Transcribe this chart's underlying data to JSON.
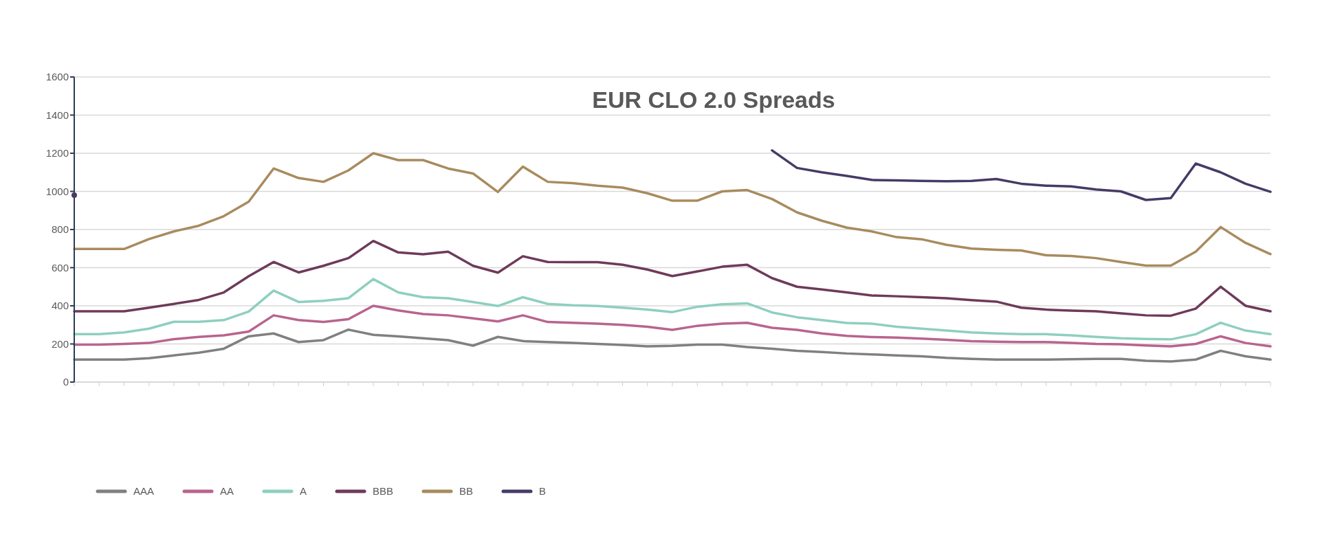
{
  "chart_data": {
    "type": "line",
    "title": "EUR CLO 2.0 Spreads",
    "categories": [
      null,
      null,
      null,
      null,
      null,
      null,
      null,
      null,
      null,
      null,
      null,
      null,
      null,
      null,
      null,
      null,
      null,
      null,
      null,
      null,
      null,
      null,
      null,
      null,
      null,
      null,
      null,
      null,
      null,
      null,
      null,
      null,
      null,
      null,
      null,
      null,
      null,
      null,
      null,
      null,
      null,
      null,
      null,
      null,
      null,
      null,
      null,
      null,
      null
    ],
    "series": [
      {
        "name": "AAA",
        "color": "#808080",
        "values": [
          118,
          118,
          118,
          125,
          140,
          154,
          175,
          240,
          255,
          210,
          220,
          275,
          248,
          240,
          230,
          220,
          191,
          237,
          215,
          210,
          205,
          200,
          195,
          187,
          190,
          196,
          196,
          184,
          175,
          164,
          158,
          150,
          145,
          140,
          135,
          127,
          122,
          118,
          118,
          118,
          120,
          122,
          122,
          112,
          108,
          118,
          164,
          135,
          118
        ]
      },
      {
        "name": "AA",
        "color": "#b9648f",
        "values": [
          196,
          196,
          200,
          205,
          225,
          237,
          245,
          265,
          350,
          325,
          315,
          330,
          400,
          376,
          357,
          350,
          334,
          318,
          350,
          315,
          311,
          306,
          300,
          290,
          274,
          295,
          306,
          311,
          285,
          274,
          255,
          242,
          236,
          233,
          228,
          222,
          214,
          212,
          210,
          210,
          205,
          200,
          198,
          192,
          187,
          200,
          240,
          205,
          187
        ]
      },
      {
        "name": "A",
        "color": "#8ecfbf",
        "values": [
          251,
          251,
          260,
          280,
          316,
          316,
          325,
          370,
          480,
          420,
          426,
          440,
          540,
          470,
          445,
          440,
          420,
          399,
          445,
          410,
          403,
          399,
          390,
          380,
          367,
          395,
          408,
          413,
          365,
          340,
          325,
          310,
          306,
          290,
          280,
          270,
          260,
          255,
          251,
          251,
          245,
          237,
          230,
          226,
          224,
          251,
          311,
          270,
          251
        ]
      },
      {
        "name": "BBB",
        "color": "#6e3a5a",
        "values": [
          371,
          371,
          371,
          390,
          410,
          431,
          470,
          555,
          630,
          575,
          610,
          650,
          740,
          680,
          670,
          684,
          610,
          574,
          660,
          630,
          629,
          629,
          615,
          590,
          556,
          580,
          605,
          615,
          545,
          500,
          486,
          470,
          454,
          450,
          445,
          440,
          430,
          422,
          390,
          380,
          375,
          371,
          360,
          350,
          348,
          385,
          500,
          400,
          371
        ]
      },
      {
        "name": "BB",
        "color": "#a88b5e",
        "values": [
          698,
          698,
          698,
          750,
          790,
          820,
          870,
          946,
          1120,
          1070,
          1050,
          1110,
          1200,
          1164,
          1164,
          1120,
          1094,
          997,
          1130,
          1050,
          1043,
          1030,
          1020,
          990,
          951,
          951,
          1000,
          1007,
          960,
          890,
          846,
          810,
          790,
          760,
          749,
          720,
          700,
          694,
          690,
          665,
          661,
          650,
          630,
          611,
          611,
          684,
          813,
          730,
          671
        ]
      },
      {
        "name": "B",
        "color": "#463a66",
        "values": [
          980,
          null,
          null,
          null,
          null,
          null,
          null,
          null,
          null,
          null,
          null,
          null,
          null,
          null,
          null,
          null,
          null,
          null,
          null,
          null,
          null,
          null,
          null,
          null,
          null,
          null,
          null,
          null,
          1215,
          1123,
          1100,
          1081,
          1060,
          1058,
          1055,
          1053,
          1055,
          1065,
          1040,
          1030,
          1026,
          1010,
          1000,
          955,
          965,
          1146,
          1100,
          1040,
          998
        ]
      }
    ],
    "ylim": [
      0,
      1600
    ],
    "yticks": [
      0,
      200,
      400,
      600,
      800,
      1000,
      1200,
      1400,
      1600
    ],
    "grid": "y",
    "legend": "bottom left",
    "marker": "none",
    "line_style": "solid"
  }
}
